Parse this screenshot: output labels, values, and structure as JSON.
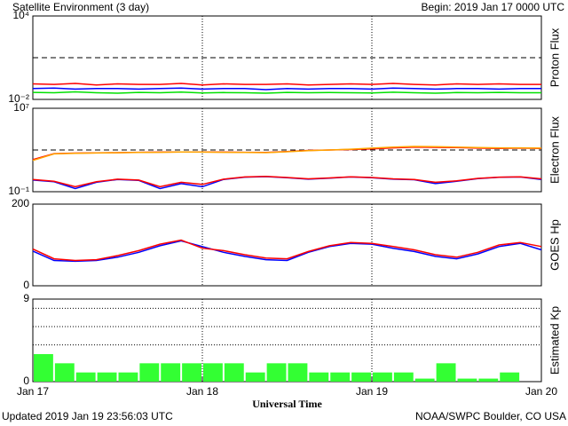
{
  "header": {
    "title": "Satellite Environment (3 day)",
    "begin": "Begin:  2019 Jan 17 0000 UTC"
  },
  "footer": {
    "updated": "Updated 2019 Jan 19 23:56:03 UTC",
    "source": "NOAA/SWPC Boulder, CO USA"
  },
  "chart_data": [
    {
      "type": "line",
      "ylabel": "Proton Flux",
      "log": true,
      "ylim": [
        0.01,
        10000
      ],
      "yticks": [
        {
          "value": 0.01,
          "label": "10⁻²"
        },
        {
          "value": 10000,
          "label": "10⁴"
        }
      ],
      "thresholds": [
        10
      ],
      "vlines": [
        24,
        48
      ],
      "xlim": [
        0,
        72
      ],
      "x": [
        0,
        3,
        6,
        9,
        12,
        15,
        18,
        21,
        24,
        27,
        30,
        33,
        36,
        39,
        42,
        45,
        48,
        51,
        54,
        57,
        60,
        63,
        66,
        69,
        72
      ],
      "series": [
        {
          "color": "#ff0000",
          "values": [
            0.13,
            0.12,
            0.14,
            0.11,
            0.13,
            0.12,
            0.12,
            0.14,
            0.11,
            0.13,
            0.12,
            0.12,
            0.13,
            0.11,
            0.12,
            0.13,
            0.12,
            0.14,
            0.12,
            0.11,
            0.13,
            0.12,
            0.13,
            0.12,
            0.12
          ]
        },
        {
          "color": "#0000ff",
          "values": [
            0.06,
            0.065,
            0.055,
            0.06,
            0.06,
            0.055,
            0.06,
            0.065,
            0.055,
            0.06,
            0.06,
            0.05,
            0.06,
            0.055,
            0.06,
            0.06,
            0.055,
            0.065,
            0.06,
            0.055,
            0.06,
            0.06,
            0.055,
            0.06,
            0.06
          ]
        },
        {
          "color": "#00e000",
          "values": [
            0.032,
            0.03,
            0.035,
            0.03,
            0.028,
            0.032,
            0.03,
            0.034,
            0.029,
            0.031,
            0.03,
            0.028,
            0.032,
            0.03,
            0.031,
            0.03,
            0.029,
            0.033,
            0.03,
            0.028,
            0.031,
            0.03,
            0.032,
            0.03,
            0.03
          ]
        }
      ]
    },
    {
      "type": "line",
      "ylabel": "Electron Flux",
      "log": true,
      "ylim": [
        0.1,
        10000000
      ],
      "yticks": [
        {
          "value": 0.1,
          "label": "10⁻¹"
        },
        {
          "value": 10000000,
          "label": "10⁷"
        }
      ],
      "thresholds": [
        1000
      ],
      "vlines": [
        24,
        48
      ],
      "xlim": [
        0,
        72
      ],
      "x": [
        0,
        3,
        6,
        9,
        12,
        15,
        18,
        21,
        24,
        27,
        30,
        33,
        36,
        39,
        42,
        45,
        48,
        51,
        54,
        57,
        60,
        63,
        66,
        69,
        72
      ],
      "series": [
        {
          "color": "#ff0000",
          "values": [
            120,
            450,
            500,
            520,
            560,
            600,
            620,
            650,
            640,
            620,
            600,
            580,
            700,
            900,
            1000,
            1100,
            1300,
            1600,
            1900,
            1800,
            1700,
            1500,
            1400,
            1500,
            1400
          ]
        },
        {
          "color": "#ffa500",
          "values": [
            100,
            420,
            480,
            510,
            550,
            580,
            600,
            640,
            630,
            600,
            590,
            560,
            680,
            880,
            1000,
            1200,
            1500,
            1900,
            2200,
            2100,
            1900,
            1700,
            1600,
            1600,
            1500
          ]
        },
        {
          "color": "#0000ff",
          "values": [
            1.3,
            0.9,
            0.2,
            0.8,
            1.5,
            1.2,
            0.2,
            0.6,
            0.3,
            1.5,
            2.5,
            2.8,
            2.2,
            1.6,
            2.0,
            2.6,
            2.2,
            1.6,
            1.4,
            0.6,
            1.0,
            1.8,
            2.4,
            2.6,
            1.5
          ]
        },
        {
          "color": "#ff0000",
          "values": [
            1.5,
            1.0,
            0.3,
            0.9,
            1.6,
            1.3,
            0.3,
            0.8,
            0.5,
            1.6,
            2.6,
            2.9,
            2.3,
            1.7,
            2.1,
            2.7,
            2.3,
            1.7,
            1.5,
            0.8,
            1.1,
            1.9,
            2.5,
            2.7,
            1.7
          ]
        }
      ]
    },
    {
      "type": "line",
      "ylabel": "GOES Hp",
      "log": false,
      "ylim": [
        0,
        200
      ],
      "yticks": [
        0,
        200
      ],
      "vlines": [
        24,
        48
      ],
      "xlim": [
        0,
        72
      ],
      "x": [
        0,
        3,
        6,
        9,
        12,
        15,
        18,
        21,
        24,
        27,
        30,
        33,
        36,
        39,
        42,
        45,
        48,
        51,
        54,
        57,
        60,
        63,
        66,
        69,
        72
      ],
      "series": [
        {
          "color": "#0000ff",
          "values": [
            85,
            62,
            60,
            62,
            70,
            82,
            98,
            110,
            96,
            82,
            72,
            64,
            62,
            82,
            96,
            104,
            102,
            92,
            84,
            72,
            66,
            78,
            96,
            104,
            88
          ]
        },
        {
          "color": "#ff0000",
          "values": [
            90,
            66,
            62,
            64,
            74,
            86,
            102,
            112,
            92,
            86,
            76,
            68,
            66,
            84,
            98,
            106,
            104,
            96,
            88,
            76,
            70,
            82,
            100,
            106,
            96
          ]
        }
      ]
    },
    {
      "type": "bar",
      "ylabel": "Estimated Kp",
      "log": false,
      "ylim": [
        0,
        9
      ],
      "yticks": [
        0,
        9
      ],
      "hlines": [
        4,
        6,
        8
      ],
      "vlines": [
        24,
        48
      ],
      "xlim": [
        0,
        72
      ],
      "color": "#33ff33",
      "bar_width": 3,
      "x": [
        0,
        3,
        6,
        9,
        12,
        15,
        18,
        21,
        24,
        27,
        30,
        33,
        36,
        39,
        42,
        45,
        48,
        51,
        54,
        57,
        60,
        63,
        66,
        69
      ],
      "values": [
        3,
        2,
        1,
        1,
        1,
        2,
        2,
        2,
        2,
        2,
        1,
        2,
        2,
        1,
        1,
        1,
        1,
        1,
        0.33,
        2,
        0.33,
        0.33,
        1,
        null
      ],
      "xlabel": "Universal Time",
      "xticks": [
        {
          "value": 0,
          "label": "Jan 17"
        },
        {
          "value": 24,
          "label": "Jan 18"
        },
        {
          "value": 48,
          "label": "Jan 19"
        },
        {
          "value": 72,
          "label": "Jan 20"
        }
      ]
    }
  ]
}
